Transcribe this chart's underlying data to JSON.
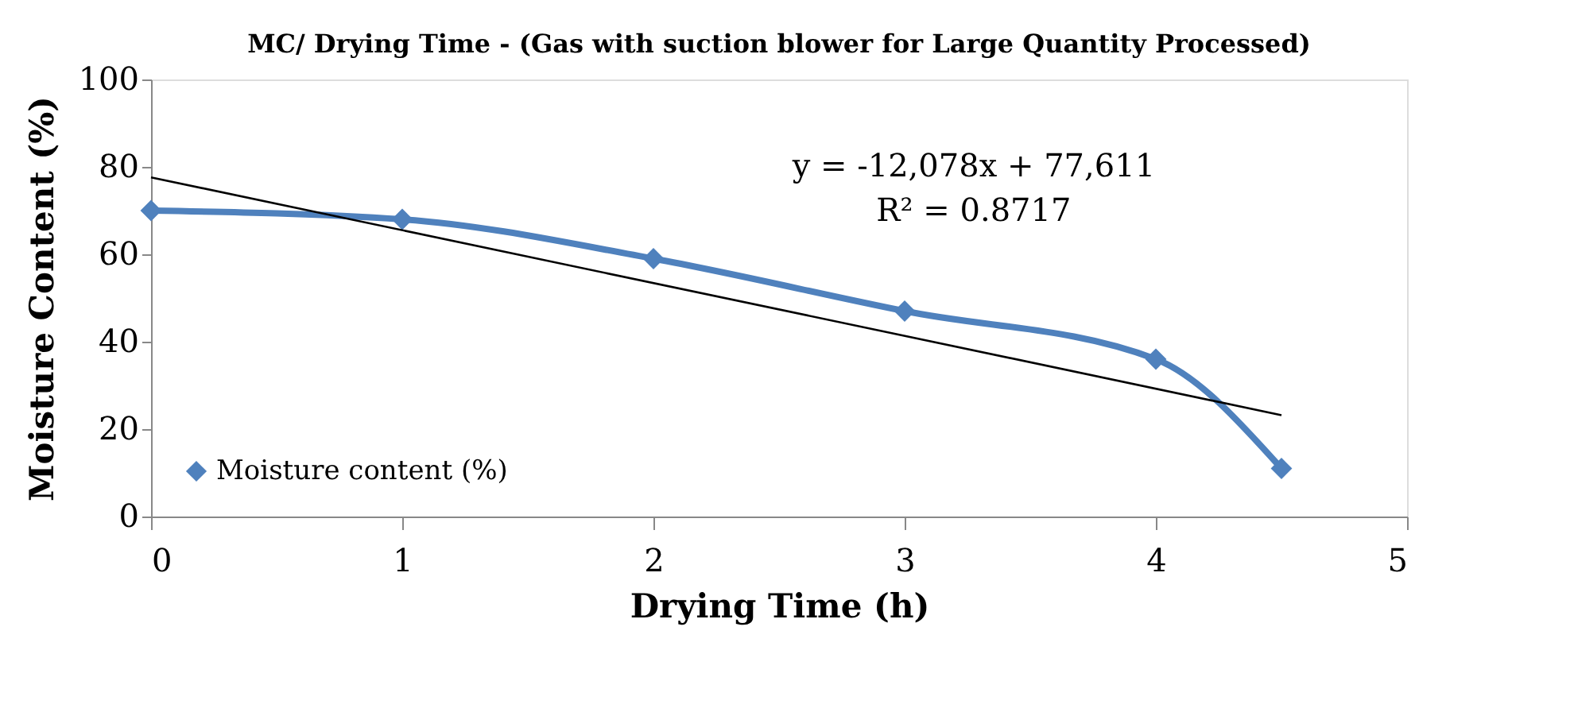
{
  "chart_data": {
    "type": "line",
    "title": "MC/ Drying Time -  (Gas with suction blower for Large Quantity Processed)",
    "xlabel": "Drying Time (h)",
    "ylabel": "Moisture Content (%)",
    "x": [
      0,
      1,
      2,
      3,
      4,
      4.5
    ],
    "series": [
      {
        "name": "Moisture content (%)",
        "color": "#4f81bd",
        "values": [
          70,
          68,
          59,
          47,
          36,
          11
        ],
        "marker": "diamond"
      },
      {
        "type": "line",
        "color": "#000000",
        "x": [
          0,
          4.5
        ],
        "values": [
          77.6,
          23.2
        ],
        "marker": "none"
      }
    ],
    "annotations": [
      "y = -12,078x + 77,611",
      "R² = 0.8717"
    ],
    "xlim": [
      0,
      5
    ],
    "xticks": [
      0,
      1,
      2,
      3,
      4,
      5
    ],
    "ylim": [
      0,
      100
    ],
    "yticks": [
      0,
      20,
      40,
      60,
      80,
      100
    ],
    "grid": false,
    "legend": "bottom left"
  }
}
